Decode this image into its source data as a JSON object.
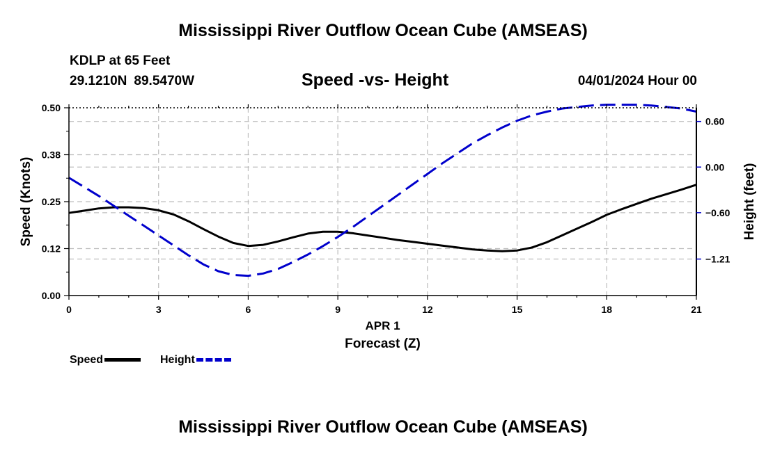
{
  "header": {
    "title": "Mississippi River Outflow Ocean Cube (AMSEAS)",
    "station": "KDLP at 65 Feet",
    "lat": "29.1210N",
    "lon": "89.5470W",
    "date": "04/01/2024 Hour 00"
  },
  "footer": {
    "title": "Mississippi River Outflow Ocean Cube (AMSEAS)"
  },
  "chart_data": {
    "type": "line",
    "title": "Speed -vs- Height",
    "xlabel_date": "APR 1",
    "xlabel": "Forecast (Z)",
    "ylabel": "Speed (Knots)",
    "y2label": "Height (feet)",
    "xlim": [
      0,
      21
    ],
    "ylim": [
      0,
      0.5
    ],
    "y2lim": [
      -1.69,
      0.78
    ],
    "x_ticks": [
      0,
      3,
      6,
      9,
      12,
      15,
      18,
      21
    ],
    "x_tick_labels": [
      "0",
      "3",
      "6",
      "9",
      "12",
      "15",
      "18",
      "21"
    ],
    "y_ticks": [
      0.0,
      0.125,
      0.25,
      0.375,
      0.5
    ],
    "y_tick_labels": [
      "0.00",
      "0.12",
      "0.25",
      "0.38",
      "0.50"
    ],
    "y2_ticks": [
      -1.21,
      -0.6,
      0.0,
      0.6
    ],
    "y2_tick_labels": [
      "−1.21",
      "−0.60",
      "0.00",
      "0.60"
    ],
    "grid": true,
    "series": [
      {
        "name": "Speed",
        "axis": "left",
        "color": "#000000",
        "style": "solid",
        "x": [
          0,
          0.5,
          1,
          1.5,
          2,
          2.5,
          3,
          3.5,
          4,
          4.5,
          5,
          5.5,
          6,
          6.5,
          7,
          7.5,
          8,
          8.5,
          9,
          9.5,
          10,
          10.5,
          11,
          11.5,
          12,
          12.5,
          13,
          13.5,
          14,
          14.5,
          15,
          15.5,
          16,
          16.5,
          17,
          17.5,
          18,
          18.5,
          19,
          19.5,
          20,
          20.5,
          21
        ],
        "values": [
          0.22,
          0.226,
          0.232,
          0.235,
          0.235,
          0.233,
          0.227,
          0.216,
          0.198,
          0.177,
          0.157,
          0.14,
          0.132,
          0.135,
          0.144,
          0.155,
          0.165,
          0.17,
          0.17,
          0.166,
          0.16,
          0.154,
          0.148,
          0.143,
          0.138,
          0.133,
          0.128,
          0.123,
          0.12,
          0.118,
          0.12,
          0.128,
          0.142,
          0.16,
          0.178,
          0.196,
          0.215,
          0.23,
          0.244,
          0.258,
          0.27,
          0.282,
          0.295
        ]
      },
      {
        "name": "Height",
        "axis": "right",
        "color": "#0000cc",
        "style": "dashed",
        "x": [
          0,
          0.5,
          1,
          1.5,
          2,
          2.5,
          3,
          3.5,
          4,
          4.5,
          5,
          5.5,
          6,
          6.5,
          7,
          7.5,
          8,
          8.5,
          9,
          9.5,
          10,
          10.5,
          11,
          11.5,
          12,
          12.5,
          13,
          13.5,
          14,
          14.5,
          15,
          15.5,
          16,
          16.5,
          17,
          17.5,
          18,
          18.5,
          19,
          19.5,
          20,
          20.5,
          21
        ],
        "values": [
          -0.14,
          -0.26,
          -0.38,
          -0.51,
          -0.64,
          -0.77,
          -0.9,
          -1.03,
          -1.16,
          -1.28,
          -1.37,
          -1.42,
          -1.43,
          -1.4,
          -1.34,
          -1.25,
          -1.15,
          -1.04,
          -0.92,
          -0.79,
          -0.65,
          -0.51,
          -0.37,
          -0.23,
          -0.09,
          0.05,
          0.18,
          0.31,
          0.42,
          0.52,
          0.61,
          0.68,
          0.73,
          0.77,
          0.79,
          0.81,
          0.82,
          0.82,
          0.82,
          0.81,
          0.79,
          0.77,
          0.73
        ]
      }
    ]
  }
}
